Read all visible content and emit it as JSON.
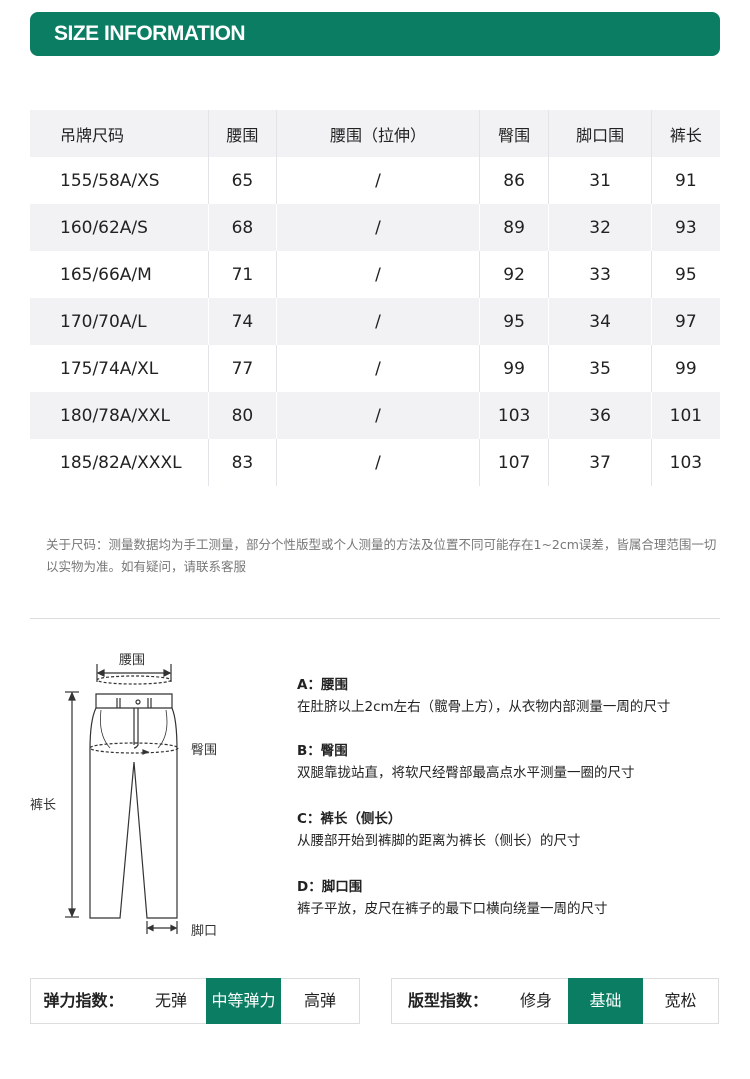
{
  "title": "SIZE INFORMATION",
  "table": {
    "headers": [
      "吊牌尺码",
      "腰围",
      "腰围（拉伸）",
      "臀围",
      "脚口围",
      "裤长"
    ],
    "rows": [
      [
        "155/58A/XS",
        "65",
        "/",
        "86",
        "31",
        "91"
      ],
      [
        "160/62A/S",
        "68",
        "/",
        "89",
        "32",
        "93"
      ],
      [
        "165/66A/M",
        "71",
        "/",
        "92",
        "33",
        "95"
      ],
      [
        "170/70A/L",
        "74",
        "/",
        "95",
        "34",
        "97"
      ],
      [
        "175/74A/XL",
        "77",
        "/",
        "99",
        "35",
        "99"
      ],
      [
        "180/78A/XXL",
        "80",
        "/",
        "103",
        "36",
        "101"
      ],
      [
        "185/82A/XXXL",
        "83",
        "/",
        "107",
        "37",
        "103"
      ]
    ]
  },
  "note": "关于尺码：测量数据均为手工测量，部分个性版型或个人测量的方法及位置不同可能存在1~2cm误差，皆属合理范围一切以实物为准。如有疑问，请联系客服",
  "diagram": {
    "waist": "腰围",
    "hip": "臀围",
    "length": "裤长",
    "hem": "脚口"
  },
  "descriptions": [
    {
      "title": "A：腰围",
      "text": "在肚脐以上2cm左右（髋骨上方），从衣物内部测量一周的尺寸"
    },
    {
      "title": "B：臀围",
      "text": "双腿靠拢站直，将软尺经臀部最高点水平测量一圈的尺寸"
    },
    {
      "title": "C：裤长（侧长）",
      "text": "从腰部开始到裤脚的距离为裤长（侧长）的尺寸"
    },
    {
      "title": "D：脚口围",
      "text": "裤子平放，皮尺在裤子的最下口横向绕量一周的尺寸"
    }
  ],
  "elasticity": {
    "label": "弹力指数：",
    "options": [
      "无弹",
      "中等弹力",
      "高弹"
    ],
    "selected": "中等弹力"
  },
  "fit": {
    "label": "版型指数：",
    "options": [
      "修身",
      "基础",
      "宽松"
    ],
    "selected": "基础"
  },
  "colors": {
    "accent": "#0a7d63"
  }
}
